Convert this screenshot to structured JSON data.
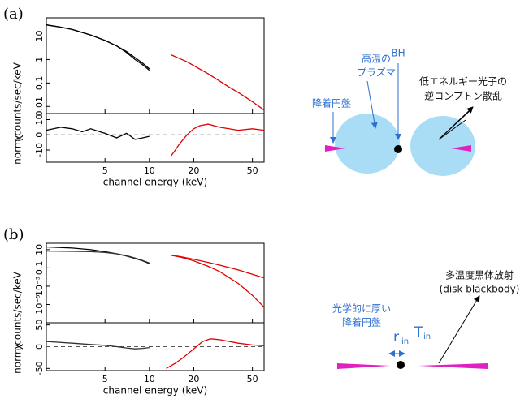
{
  "panels": [
    "(a)",
    "(b)"
  ],
  "chart_data": [
    {
      "type": "line",
      "ylabel": "norm counts/sec/keV",
      "xlog": true,
      "ylog": true,
      "xlim": [
        2,
        60
      ],
      "xticks": [
        5,
        10,
        20,
        50
      ],
      "ylim": [
        0.005,
        60
      ],
      "yticks": [
        10,
        1,
        0.1,
        0.01
      ],
      "series": [
        {
          "color": "#000000",
          "x": [
            2,
            2.5,
            3,
            4,
            5,
            6,
            7,
            8,
            9,
            10
          ],
          "values": [
            30,
            24,
            19,
            11,
            6.5,
            3.8,
            2.2,
            1.2,
            0.7,
            0.4
          ]
        },
        {
          "color": "#000000",
          "x": [
            2,
            2.5,
            3,
            4,
            5,
            6,
            7,
            8,
            9,
            10
          ],
          "values": [
            30,
            24,
            19,
            11,
            6.5,
            3.8,
            2.0,
            1.0,
            0.6,
            0.35
          ]
        },
        {
          "color": "#e00000",
          "x": [
            14,
            16,
            18,
            20,
            25,
            30,
            35,
            40,
            50,
            60
          ],
          "values": [
            1.6,
            1.1,
            0.8,
            0.55,
            0.25,
            0.12,
            0.065,
            0.04,
            0.016,
            0.007
          ]
        }
      ]
    },
    {
      "type": "line",
      "ylabel": "χ",
      "xlabel": "channel energy (keV)",
      "xlog": true,
      "ylog": false,
      "xlim": [
        2,
        60
      ],
      "xticks": [
        5,
        10,
        20,
        50
      ],
      "ylim": [
        -18,
        14
      ],
      "yticks": [
        10,
        0,
        -10
      ],
      "hline": 0,
      "series": [
        {
          "color": "#000000",
          "x": [
            2,
            2.5,
            3,
            3.5,
            4,
            5,
            6,
            7,
            8,
            9,
            10
          ],
          "values": [
            3,
            5,
            4,
            2,
            4,
            1,
            -2,
            1,
            -3,
            -2,
            -1
          ]
        },
        {
          "color": "#e00000",
          "x": [
            14,
            15,
            16,
            18,
            20,
            22,
            25,
            30,
            40,
            50,
            60
          ],
          "values": [
            -14,
            -10,
            -6,
            0,
            4,
            6,
            7,
            5,
            3,
            4,
            3
          ]
        }
      ]
    },
    {
      "type": "line",
      "ylabel": "norm counts/sec/keV",
      "xlog": true,
      "ylog": true,
      "xlim": [
        2,
        60
      ],
      "xticks": [
        5,
        10,
        20,
        50
      ],
      "ylim": [
        1e-07,
        50
      ],
      "yticks": [
        10,
        0.1,
        {
          "value": 0.001,
          "label": "10⁻³"
        },
        {
          "value": 1e-05,
          "label": "10⁻⁵"
        }
      ],
      "series": [
        {
          "color": "#000000",
          "x": [
            2,
            3,
            4,
            5,
            6,
            7,
            8,
            9,
            10
          ],
          "values": [
            20,
            15,
            10,
            6,
            3.5,
            2,
            1.1,
            0.6,
            0.3
          ]
        },
        {
          "color": "#333333",
          "x": [
            2,
            3,
            4,
            5,
            6,
            7,
            8,
            9,
            10
          ],
          "values": [
            7,
            6.5,
            6,
            5,
            3.5,
            2.2,
            1.2,
            0.65,
            0.35
          ]
        },
        {
          "color": "#e00000",
          "x": [
            14,
            16,
            20,
            25,
            30,
            40,
            50,
            60
          ],
          "values": [
            2.5,
            1.8,
            0.9,
            0.4,
            0.2,
            0.06,
            0.02,
            0.008
          ]
        },
        {
          "color": "#e00000",
          "x": [
            14,
            16,
            20,
            25,
            30,
            40,
            50,
            60
          ],
          "values": [
            2.5,
            1.6,
            0.6,
            0.15,
            0.04,
            0.002,
            0.0001,
            5e-06
          ]
        }
      ]
    },
    {
      "type": "line",
      "ylabel": "χ",
      "xlabel": "channel energy (keV)",
      "xlog": true,
      "ylog": false,
      "xlim": [
        2,
        60
      ],
      "xticks": [
        5,
        10,
        20,
        50
      ],
      "ylim": [
        -55,
        55
      ],
      "yticks": [
        50,
        0,
        -50
      ],
      "hline": 0,
      "series": [
        {
          "color": "#333333",
          "x": [
            2,
            3,
            4,
            5,
            6,
            7,
            8,
            9,
            10
          ],
          "values": [
            12,
            8,
            5,
            3,
            0,
            -3,
            -5,
            -4,
            -2
          ]
        },
        {
          "color": "#e00000",
          "x": [
            13,
            15,
            17,
            20,
            23,
            26,
            30,
            40,
            50,
            60
          ],
          "values": [
            -50,
            -38,
            -25,
            -5,
            12,
            18,
            16,
            8,
            4,
            2
          ]
        }
      ]
    }
  ],
  "diagram_a": {
    "plasma": [
      "高温の",
      "プラズマ"
    ],
    "bh": "BH",
    "disk": "降着円盤",
    "scatter": [
      "低エネルギー光子の",
      "逆コンプトン散乱"
    ]
  },
  "diagram_b": {
    "disk": [
      "光学的に厚い",
      "降着円盤"
    ],
    "r": "r",
    "r_sub": "in",
    "t": "T",
    "t_sub": "in",
    "emission": [
      "多温度黒体放射",
      "(disk blackbody)"
    ]
  }
}
